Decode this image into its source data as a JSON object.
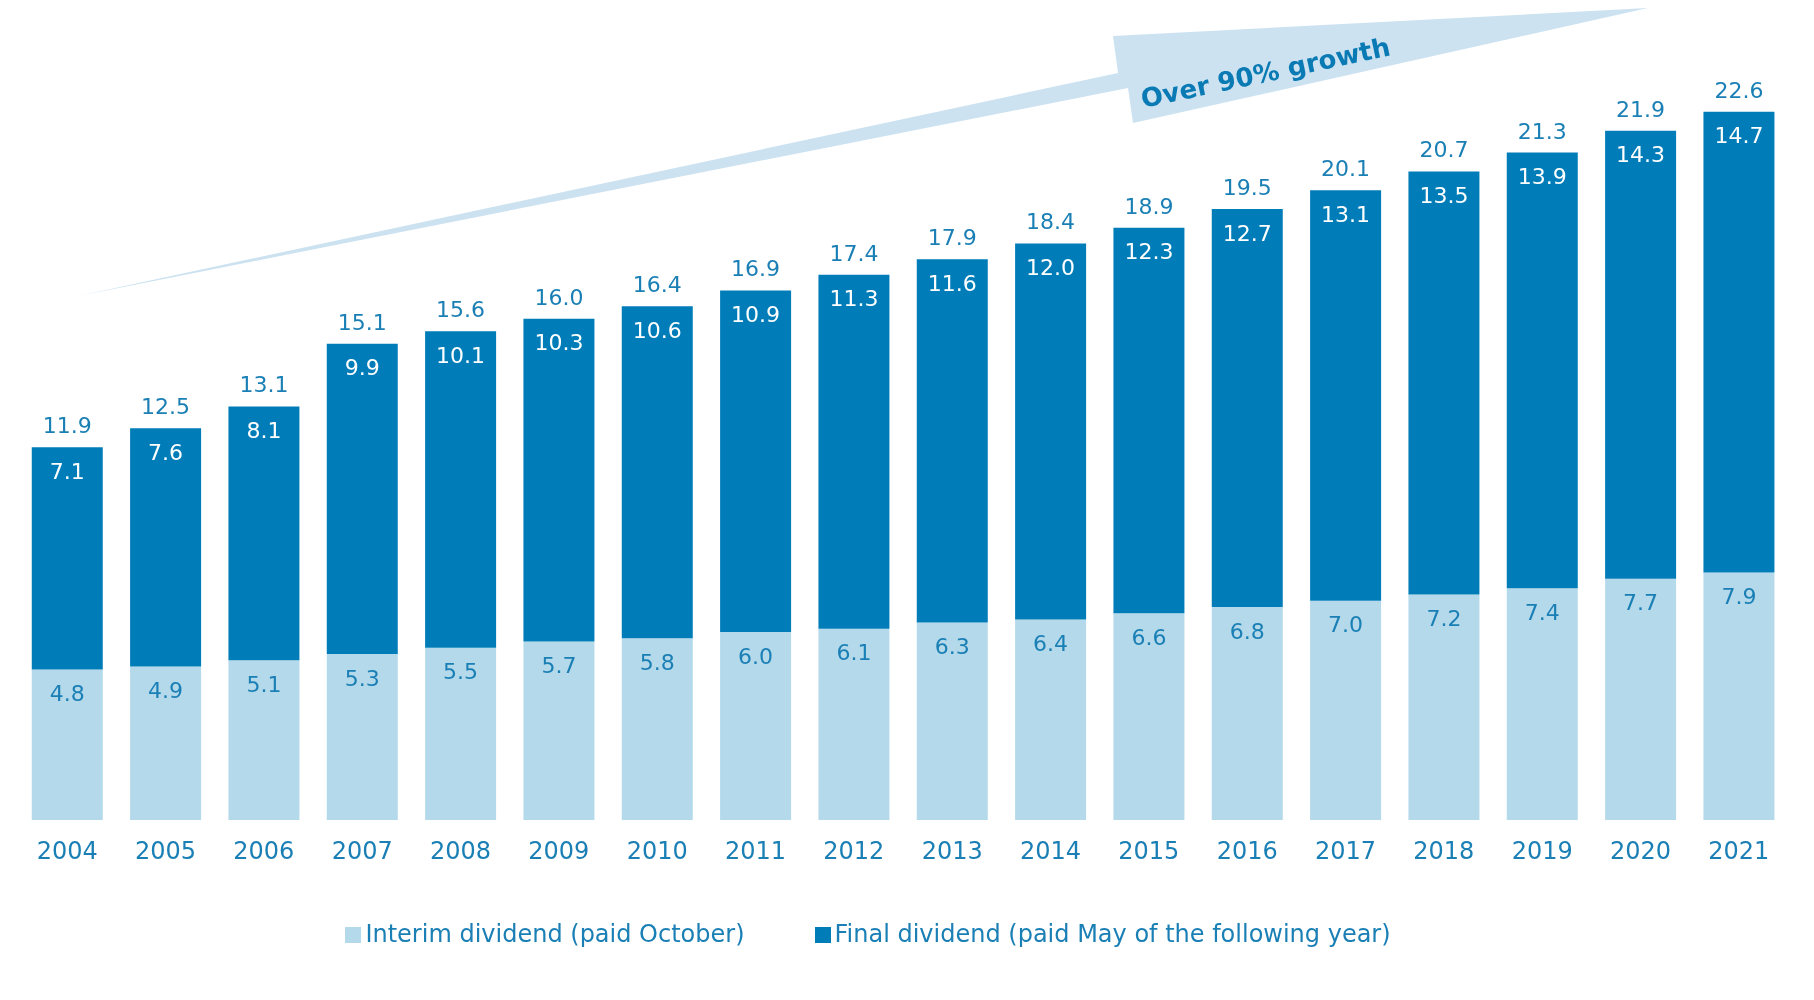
{
  "chart_data": {
    "type": "bar",
    "stacked": true,
    "legend": "bottom",
    "grid": false,
    "categories": [
      "2004",
      "2005",
      "2006",
      "2007",
      "2008",
      "2009",
      "2010",
      "2011",
      "2012",
      "2013",
      "2014",
      "2015",
      "2016",
      "2017",
      "2018",
      "2019",
      "2020",
      "2021"
    ],
    "series": [
      {
        "name": "Interim dividend (paid October)",
        "color": "#b3d9ea",
        "values": [
          4.8,
          4.9,
          5.1,
          5.3,
          5.5,
          5.7,
          5.8,
          6.0,
          6.1,
          6.3,
          6.4,
          6.6,
          6.8,
          7.0,
          7.2,
          7.4,
          7.7,
          7.9
        ],
        "value_labels": [
          "4.8",
          "4.9",
          "5.1",
          "5.3",
          "5.5",
          "5.7",
          "5.8",
          "6.0",
          "6.1",
          "6.3",
          "6.4",
          "6.6",
          "6.8",
          "7.0",
          "7.2",
          "7.4",
          "7.7",
          "7.9"
        ]
      },
      {
        "name": "Final dividend (paid May of the following year)",
        "color": "#007db8",
        "values": [
          7.1,
          7.6,
          8.1,
          9.9,
          10.1,
          10.3,
          10.6,
          10.9,
          11.3,
          11.6,
          12.0,
          12.3,
          12.7,
          13.1,
          13.5,
          13.9,
          14.3,
          14.7
        ],
        "value_labels": [
          "7.1",
          "7.6",
          "8.1",
          "9.9",
          "10.1",
          "10.3",
          "10.6",
          "10.9",
          "11.3",
          "11.6",
          "12.0",
          "12.3",
          "12.7",
          "13.1",
          "13.5",
          "13.9",
          "14.3",
          "14.7"
        ]
      }
    ],
    "totals": [
      "11.9",
      "12.5",
      "13.1",
      "15.1",
      "15.6",
      "16.0",
      "16.4",
      "16.9",
      "17.4",
      "17.9",
      "18.4",
      "18.9",
      "19.5",
      "20.1",
      "20.7",
      "21.3",
      "21.9",
      "22.6"
    ],
    "annotations": [
      "Over 90% growth"
    ]
  }
}
